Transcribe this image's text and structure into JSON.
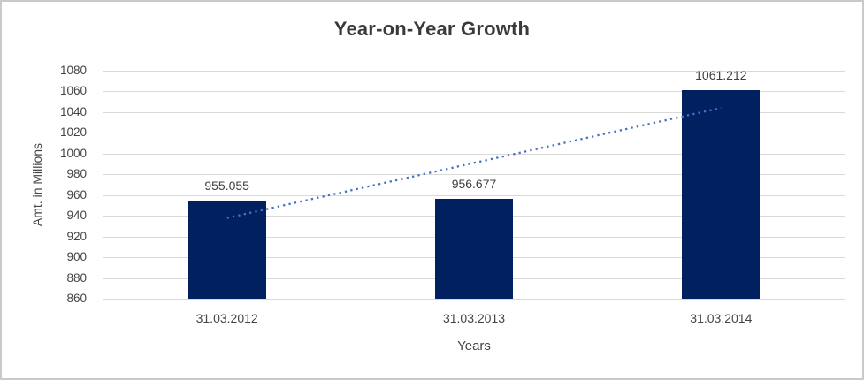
{
  "chart_data": {
    "type": "bar",
    "title": "Year-on-Year Growth",
    "xlabel": "Years",
    "ylabel": "Amt. in Millions",
    "categories": [
      "31.03.2012",
      "31.03.2013",
      "31.03.2014"
    ],
    "values": [
      955.055,
      956.677,
      1061.212
    ],
    "data_labels": [
      "955.055",
      "956.677",
      "1061.212"
    ],
    "ylim": [
      860,
      1080
    ],
    "ytick_step": 20,
    "ytick_labels": [
      "860",
      "880",
      "900",
      "920",
      "940",
      "960",
      "980",
      "1000",
      "1020",
      "1040",
      "1060",
      "1080"
    ],
    "grid": true,
    "legend_position": "none",
    "trendline": {
      "type": "linear",
      "style": "dotted",
      "start_value": 937.9,
      "end_value": 1044.1,
      "color": "#4472C4"
    },
    "colors": {
      "bar": "#002060",
      "gridline": "#D9D9D9",
      "title_text": "#3A3A3A",
      "axis_text": "#444444",
      "label_text": "#404040",
      "frame_border": "#C9C9C9",
      "background": "#FFFFFF"
    }
  }
}
